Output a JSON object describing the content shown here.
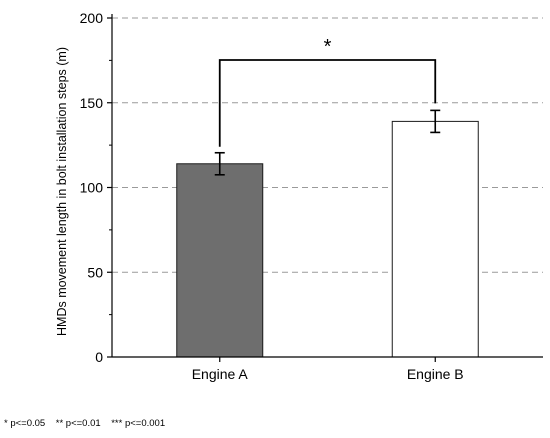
{
  "chart_data": {
    "type": "bar",
    "title": "",
    "xlabel": "",
    "ylabel": "HMDs movement length in bolt installation steps (m)",
    "ylim": [
      0,
      200
    ],
    "yticks": [
      0,
      50,
      100,
      150,
      200
    ],
    "grid": "horizontal dashed",
    "categories": [
      "Engine A",
      "Engine B"
    ],
    "values": [
      114,
      139
    ],
    "errors": [
      6.5,
      6.5
    ],
    "bar_colors": [
      "#6e6e6e",
      "#ffffff"
    ],
    "significance": {
      "from": "Engine A",
      "to": "Engine B",
      "level": 200,
      "label": "*"
    }
  },
  "footnote": "* p<=0.05    ** p<=0.01    *** p<=0.001"
}
